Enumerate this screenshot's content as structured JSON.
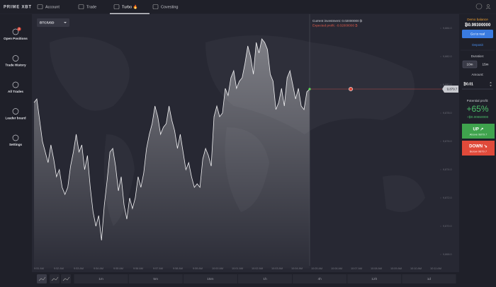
{
  "header": {
    "logo": "PRIME XBT",
    "tabs": [
      "Account",
      "Trade",
      "Turbo 🔥",
      "Covesting"
    ],
    "active_tab": 2
  },
  "sidebar": {
    "items": [
      {
        "label": "Open Positions",
        "badge": "2"
      },
      {
        "label": "Trade History"
      },
      {
        "label": "All Trades"
      },
      {
        "label": "Leader board"
      },
      {
        "label": "Settings"
      }
    ]
  },
  "chart": {
    "symbol": "BTC/USD",
    "investment": "Current investment: 0.02000000 ₿",
    "expected_profit": "Expected profit:  -0.02000000 ₿",
    "current_price": {
      "value": 9879.7,
      "label": "9,879.7"
    },
    "ylim": [
      9867,
      9885
    ],
    "yticks": [
      {
        "value": 9884,
        "label": "9,884.0"
      },
      {
        "value": 9882,
        "label": "9,882.0"
      },
      {
        "value": 9880,
        "label": "9,880.0"
      },
      {
        "value": 9878,
        "label": "9,878.0"
      },
      {
        "value": 9876,
        "label": "9,876.0"
      },
      {
        "value": 9874,
        "label": "9,874.0"
      },
      {
        "value": 9872,
        "label": "9,872.0"
      },
      {
        "value": 9870,
        "label": "9,870.0"
      },
      {
        "value": 9868,
        "label": "9,868.0"
      }
    ],
    "xticks": [
      "9:51 AM",
      "9:52 AM",
      "9:53 AM",
      "9:54 AM",
      "9:55 AM",
      "9:56 AM",
      "9:57 AM",
      "9:58 AM",
      "9:59 AM",
      "10:00 AM",
      "10:01 AM",
      "10:02 AM",
      "10:03 AM",
      "10:04 AM",
      "10:05 AM",
      "10:06 AM",
      "10:07 AM",
      "10:08 AM",
      "10:09 AM",
      "10:10 AM",
      "10:11 AM"
    ],
    "prices": [
      9878.75,
      9879,
      9877.5,
      9876,
      9875.25,
      9874.5,
      9875.75,
      9874.75,
      9873.5,
      9874,
      9872.75,
      9872.25,
      9872.75,
      9874.25,
      9875.25,
      9876.5,
      9875.25,
      9875.75,
      9874,
      9875,
      9872.75,
      9871,
      9870,
      9870.75,
      9869,
      9871.5,
      9873.25,
      9875.25,
      9875.5,
      9874.25,
      9872.5,
      9873.5,
      9871.5,
      9870.5,
      9872,
      9871.25,
      9872,
      9873.5,
      9872.75,
      9873.75,
      9875.5,
      9876.5,
      9877.25,
      9878.5,
      9877.75,
      9876.5,
      9877,
      9877.25,
      9878.5,
      9877.5,
      9876.75,
      9875.5,
      9876.5,
      9875.25,
      9874,
      9874.5,
      9873.5,
      9872.75,
      9873,
      9872.75,
      9874.75,
      9875.5,
      9875,
      9874.25,
      9877.75,
      9878.5,
      9877.75,
      9878,
      9879.75,
      9879.25,
      9880.5,
      9881,
      9879.75,
      9880.25,
      9880.5,
      9881.5,
      9882.75,
      9882,
      9880.75,
      9883,
      9882.25,
      9883.25,
      9883,
      9882.5,
      9880.75,
      9880.25,
      9878.25,
      9878.75,
      9879.75,
      9878.5,
      9880.5,
      9881,
      9880,
      9879,
      9879.75,
      9878.5,
      9878.25,
      9879.5,
      9879.7
    ]
  },
  "timeframes": [
    "1m",
    "5m",
    "15m",
    "1h",
    "4h",
    "12h",
    "1d"
  ],
  "panel": {
    "balance_label": "Demo balance",
    "balance": "₿0.99300000",
    "go_real": "Go to real",
    "deposit": "Deposit",
    "duration_label": "Duration:",
    "durations": [
      "10m",
      "15m"
    ],
    "active_duration": 0,
    "amount_label": "Amount:",
    "amount": "₿0.01",
    "profit_label": "Potential profit:",
    "profit_percent": "+65%",
    "profit_amount": "+₿0.00650000",
    "up": "UP ↗",
    "up_sub": "Above 9879.7",
    "down": "DOWN ↘",
    "down_sub": "Below 9879.7"
  }
}
